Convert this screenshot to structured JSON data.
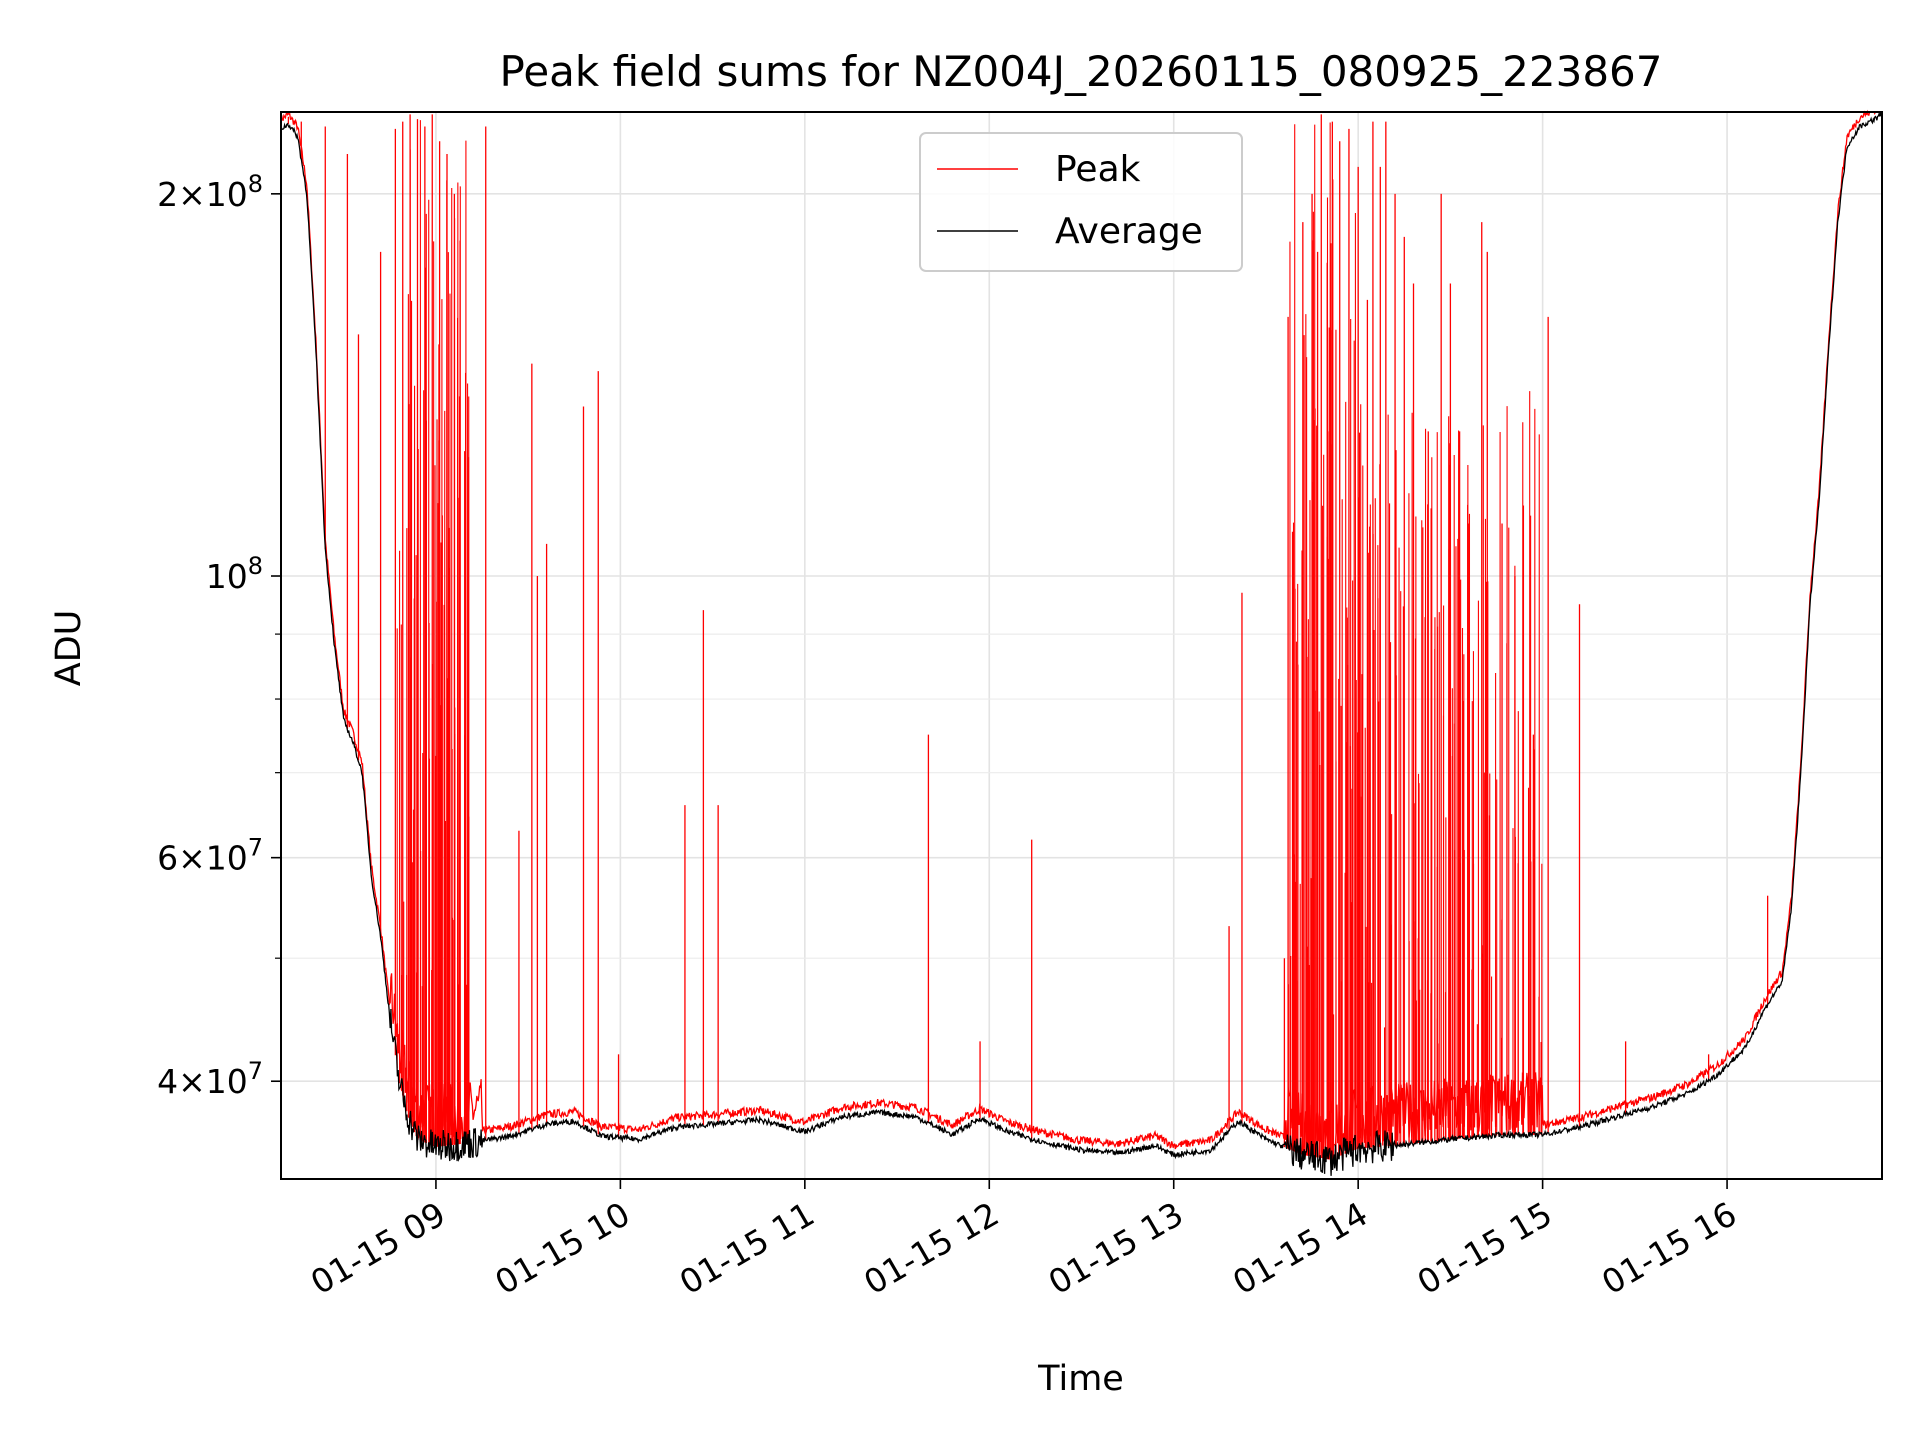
{
  "chart_data": {
    "type": "line",
    "title": "Peak field sums for NZ004J_20260115_080925_223867",
    "xlabel": "Time",
    "ylabel": "ADU",
    "yscale": "log",
    "ylim": [
      33500000,
      232000000
    ],
    "xlim_hours": [
      8.16,
      16.84
    ],
    "x_ticks": [
      {
        "hour": 9,
        "label": "01-15 09"
      },
      {
        "hour": 10,
        "label": "01-15 10"
      },
      {
        "hour": 11,
        "label": "01-15 11"
      },
      {
        "hour": 12,
        "label": "01-15 12"
      },
      {
        "hour": 13,
        "label": "01-15 13"
      },
      {
        "hour": 14,
        "label": "01-15 14"
      },
      {
        "hour": 15,
        "label": "01-15 15"
      },
      {
        "hour": 16,
        "label": "01-15 16"
      }
    ],
    "y_major_ticks": [
      {
        "value": 40000000,
        "mant": "4",
        "exp": "7"
      },
      {
        "value": 60000000,
        "mant": "6",
        "exp": "7"
      },
      {
        "value": 100000000,
        "mant": "",
        "exp": "8"
      },
      {
        "value": 200000000,
        "mant": "2",
        "exp": "8"
      }
    ],
    "y_minor_ticks": [
      50000000,
      70000000,
      80000000,
      90000000
    ],
    "grid": true,
    "legend": {
      "position": "top-center",
      "entries": [
        {
          "name": "Peak",
          "color": "#ff0000"
        },
        {
          "name": "Average",
          "color": "#000000"
        }
      ]
    },
    "series": [
      {
        "name": "Average",
        "color": "#000000",
        "points": [
          [
            8.16,
            225000000
          ],
          [
            8.2,
            227000000
          ],
          [
            8.25,
            222000000
          ],
          [
            8.3,
            200000000
          ],
          [
            8.35,
            150000000
          ],
          [
            8.4,
            105000000
          ],
          [
            8.45,
            88000000
          ],
          [
            8.5,
            77000000
          ],
          [
            8.55,
            74000000
          ],
          [
            8.6,
            70000000
          ],
          [
            8.65,
            58000000
          ],
          [
            8.7,
            52000000
          ],
          [
            8.75,
            45000000
          ],
          [
            8.8,
            40000000
          ],
          [
            8.85,
            37500000
          ],
          [
            8.9,
            36000000
          ],
          [
            9.0,
            35500000
          ],
          [
            9.2,
            35800000
          ],
          [
            9.4,
            36200000
          ],
          [
            9.6,
            37000000
          ],
          [
            9.75,
            37200000
          ],
          [
            9.9,
            36200000
          ],
          [
            10.1,
            36000000
          ],
          [
            10.3,
            36800000
          ],
          [
            10.5,
            37000000
          ],
          [
            10.75,
            37300000
          ],
          [
            11.0,
            36500000
          ],
          [
            11.2,
            37500000
          ],
          [
            11.4,
            37800000
          ],
          [
            11.6,
            37500000
          ],
          [
            11.8,
            36300000
          ],
          [
            11.95,
            37400000
          ],
          [
            12.1,
            36500000
          ],
          [
            12.3,
            35800000
          ],
          [
            12.5,
            35300000
          ],
          [
            12.7,
            35100000
          ],
          [
            12.9,
            35600000
          ],
          [
            13.0,
            35000000
          ],
          [
            13.2,
            35300000
          ],
          [
            13.35,
            37200000
          ],
          [
            13.5,
            36000000
          ],
          [
            13.7,
            35000000
          ],
          [
            13.85,
            34700000
          ],
          [
            14.0,
            35400000
          ],
          [
            14.2,
            35600000
          ],
          [
            14.5,
            36000000
          ],
          [
            14.8,
            36300000
          ],
          [
            15.0,
            36300000
          ],
          [
            15.2,
            36800000
          ],
          [
            15.4,
            37500000
          ],
          [
            15.6,
            38200000
          ],
          [
            15.8,
            39200000
          ],
          [
            15.95,
            40500000
          ],
          [
            16.1,
            42500000
          ],
          [
            16.2,
            45500000
          ],
          [
            16.3,
            48000000
          ],
          [
            16.35,
            55000000
          ],
          [
            16.4,
            70000000
          ],
          [
            16.45,
            95000000
          ],
          [
            16.5,
            115000000
          ],
          [
            16.55,
            150000000
          ],
          [
            16.6,
            190000000
          ],
          [
            16.65,
            218000000
          ],
          [
            16.72,
            226000000
          ],
          [
            16.8,
            229000000
          ],
          [
            16.84,
            231000000
          ]
        ]
      },
      {
        "name": "Peak",
        "color": "#ff0000",
        "spikes": [
          [
            8.2,
            230000000
          ],
          [
            8.27,
            228000000
          ],
          [
            8.4,
            226000000
          ],
          [
            8.52,
            215000000
          ],
          [
            8.58,
            155000000
          ],
          [
            8.7,
            180000000
          ],
          [
            8.78,
            225000000
          ],
          [
            8.82,
            228000000
          ],
          [
            8.86,
            231000000
          ],
          [
            8.9,
            229000000
          ],
          [
            8.94,
            226000000
          ],
          [
            8.98,
            231000000
          ],
          [
            9.02,
            220000000
          ],
          [
            9.06,
            215000000
          ],
          [
            9.1,
            200000000
          ],
          [
            9.16,
            65000000
          ],
          [
            9.27,
            226000000
          ],
          [
            9.45,
            63000000
          ],
          [
            9.52,
            147000000
          ],
          [
            9.55,
            100000000
          ],
          [
            9.6,
            106000000
          ],
          [
            9.8,
            136000000
          ],
          [
            9.88,
            145000000
          ],
          [
            9.99,
            42000000
          ],
          [
            10.35,
            66000000
          ],
          [
            10.45,
            94000000
          ],
          [
            10.53,
            66000000
          ],
          [
            11.67,
            75000000
          ],
          [
            11.95,
            43000000
          ],
          [
            12.23,
            62000000
          ],
          [
            13.3,
            53000000
          ],
          [
            13.37,
            97000000
          ],
          [
            13.6,
            50000000
          ],
          [
            13.62,
            160000000
          ],
          [
            13.7,
            190000000
          ],
          [
            13.75,
            200000000
          ],
          [
            13.78,
            180000000
          ],
          [
            13.8,
            231000000
          ],
          [
            13.86,
            228000000
          ],
          [
            13.9,
            220000000
          ],
          [
            13.95,
            225000000
          ],
          [
            14.0,
            210000000
          ],
          [
            14.05,
            165000000
          ],
          [
            14.08,
            228000000
          ],
          [
            14.12,
            210000000
          ],
          [
            14.15,
            228000000
          ],
          [
            14.2,
            200000000
          ],
          [
            14.25,
            185000000
          ],
          [
            14.3,
            170000000
          ],
          [
            14.38,
            130000000
          ],
          [
            14.45,
            200000000
          ],
          [
            14.5,
            170000000
          ],
          [
            14.55,
            130000000
          ],
          [
            14.6,
            110000000
          ],
          [
            14.67,
            190000000
          ],
          [
            14.7,
            180000000
          ],
          [
            14.78,
            110000000
          ],
          [
            14.85,
            100000000
          ],
          [
            14.95,
            75000000
          ],
          [
            15.03,
            160000000
          ],
          [
            15.2,
            95000000
          ],
          [
            15.45,
            43000000
          ],
          [
            15.9,
            42000000
          ],
          [
            16.22,
            56000000
          ]
        ]
      }
    ]
  }
}
